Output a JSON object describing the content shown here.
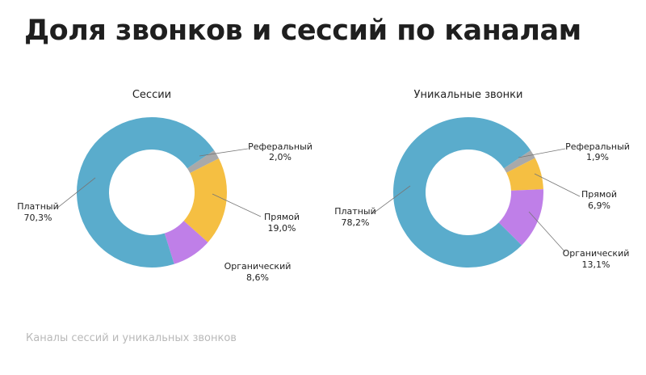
{
  "header": {
    "title": "Доля звонков и сессий по каналам"
  },
  "footer": {
    "caption": "Каналы сессий и уникальных звонков"
  },
  "chart_data": [
    {
      "type": "pie",
      "title": "Сессии",
      "hole": true,
      "slices": [
        {
          "name": "Реферальный",
          "value": 2.0,
          "label": "2,0%",
          "color": "#a9a9a9"
        },
        {
          "name": "Прямой",
          "value": 19.0,
          "label": "19,0%",
          "color": "#f5bf42"
        },
        {
          "name": "Органический",
          "value": 8.6,
          "label": "8,6%",
          "color": "#bf7fe8"
        },
        {
          "name": "Платный",
          "value": 70.3,
          "label": "70,3%",
          "color": "#5aaccc"
        }
      ]
    },
    {
      "type": "pie",
      "title": "Уникальные звонки",
      "hole": true,
      "slices": [
        {
          "name": "Реферальный",
          "value": 1.9,
          "label": "1,9%",
          "color": "#a9a9a9"
        },
        {
          "name": "Прямой",
          "value": 6.9,
          "label": "6,9%",
          "color": "#f5bf42"
        },
        {
          "name": "Органический",
          "value": 13.1,
          "label": "13,1%",
          "color": "#bf7fe8"
        },
        {
          "name": "Платный",
          "value": 78.2,
          "label": "78,2%",
          "color": "#5aaccc"
        }
      ]
    }
  ]
}
